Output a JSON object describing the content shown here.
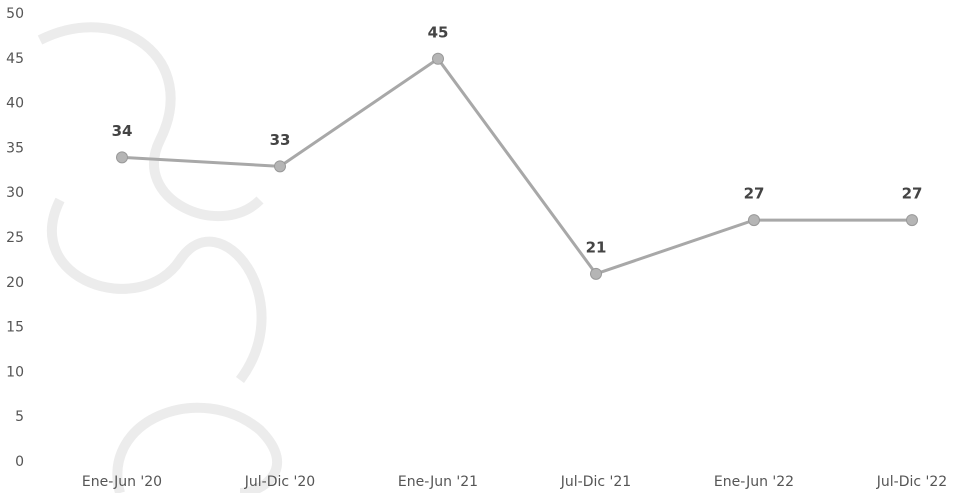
{
  "chart_data": {
    "type": "line",
    "categories": [
      "Ene-Jun '20",
      "Jul-Dic '20",
      "Ene-Jun '21",
      "Jul-Dic '21",
      "Ene-Jun '22",
      "Jul-Dic '22"
    ],
    "values": [
      34,
      33,
      45,
      21,
      27,
      27
    ],
    "color": "#a8a8a8",
    "ylim": [
      0,
      50
    ],
    "yticks": [
      0,
      5,
      10,
      15,
      20,
      25,
      30,
      35,
      40,
      45,
      50
    ],
    "grid": false
  }
}
